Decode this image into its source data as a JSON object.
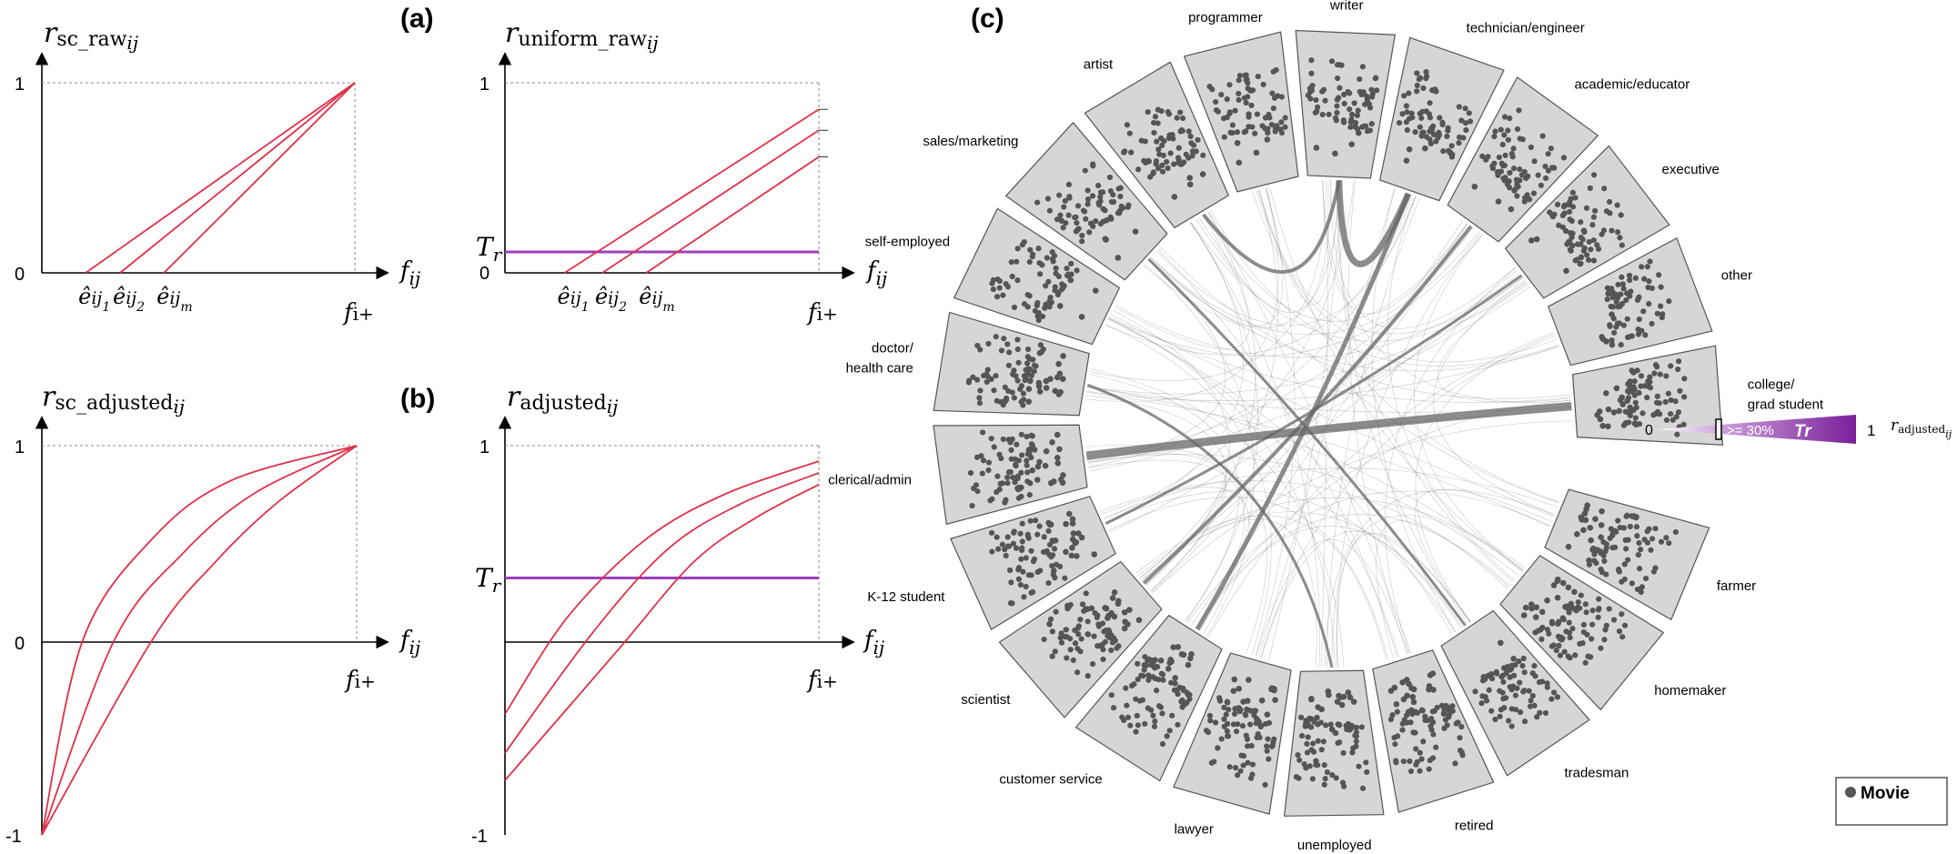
{
  "panels": {
    "a_label": "(a)",
    "b_label": "(b)",
    "c_label": "(c)"
  },
  "chart_data": [
    {
      "type": "line",
      "panel": "a-left",
      "ylabel_main": "r",
      "ylabel_sub": "sc_raw",
      "ylabel_idx": "ij",
      "xlabel_main": "f",
      "xlabel_idx": "ij",
      "xlim": [
        0,
        1
      ],
      "ylim": [
        0,
        1
      ],
      "yticks": [
        "1",
        "0"
      ],
      "x_end_label": "f",
      "x_end_sub": "i+",
      "x_markers": [
        {
          "label": "ê",
          "sub": "ij",
          "subsub": "1",
          "x": 0.14
        },
        {
          "label": "ê",
          "sub": "ij",
          "subsub": "2",
          "x": 0.25
        },
        {
          "label": "ê",
          "sub": "ij",
          "subsub": "m",
          "x": 0.39
        }
      ],
      "series": [
        {
          "x": [
            0.14,
            1.0
          ],
          "y": [
            0,
            1
          ]
        },
        {
          "x": [
            0.25,
            1.0
          ],
          "y": [
            0,
            1
          ]
        },
        {
          "x": [
            0.39,
            1.0
          ],
          "y": [
            0,
            1
          ]
        }
      ]
    },
    {
      "type": "line",
      "panel": "a-right",
      "ylabel_main": "r",
      "ylabel_sub": "uniform_raw",
      "ylabel_idx": "ij",
      "xlabel_main": "f",
      "xlabel_idx": "ij",
      "xlim": [
        0,
        1
      ],
      "ylim": [
        0,
        1
      ],
      "yticks": [
        "1",
        "0"
      ],
      "threshold_label": "T",
      "threshold_sub": "r",
      "threshold": 0.11,
      "x_end_label": "f",
      "x_end_sub": "i+",
      "x_markers": [
        {
          "label": "ê",
          "sub": "ij",
          "subsub": "1",
          "x": 0.19
        },
        {
          "label": "ê",
          "sub": "ij",
          "subsub": "2",
          "x": 0.31
        },
        {
          "label": "ê",
          "sub": "ij",
          "subsub": "m",
          "x": 0.45
        }
      ],
      "series": [
        {
          "x": [
            0.19,
            1.0
          ],
          "y": [
            0,
            0.86
          ]
        },
        {
          "x": [
            0.31,
            1.0
          ],
          "y": [
            0,
            0.75
          ]
        },
        {
          "x": [
            0.45,
            1.0
          ],
          "y": [
            0,
            0.61
          ]
        }
      ]
    },
    {
      "type": "line",
      "panel": "b-left",
      "ylabel_main": "r",
      "ylabel_sub": "sc_adjusted",
      "ylabel_idx": "ij",
      "xlabel_main": "f",
      "xlabel_idx": "ij",
      "xlim": [
        0,
        1
      ],
      "ylim": [
        -1,
        1
      ],
      "yticks": [
        "1",
        "0",
        "-1"
      ],
      "x_end_label": "f",
      "x_end_sub": "i+",
      "series": [
        {
          "x": [
            0,
            0.13,
            0.35,
            0.6,
            1.0
          ],
          "y": [
            -1,
            0,
            0.52,
            0.82,
            1
          ]
        },
        {
          "x": [
            0,
            0.23,
            0.45,
            0.68,
            1.0
          ],
          "y": [
            -1,
            0,
            0.45,
            0.76,
            1
          ]
        },
        {
          "x": [
            0,
            0.35,
            0.55,
            0.75,
            1.0
          ],
          "y": [
            -1,
            0,
            0.4,
            0.71,
            1
          ]
        }
      ]
    },
    {
      "type": "line",
      "panel": "b-right",
      "ylabel_main": "r",
      "ylabel_sub": "adjusted",
      "ylabel_idx": "ij",
      "xlabel_main": "f",
      "xlabel_idx": "ij",
      "xlim": [
        0,
        1
      ],
      "ylim": [
        -1,
        1
      ],
      "yticks": [
        "1",
        "-1"
      ],
      "threshold_label": "T",
      "threshold_sub": "r",
      "threshold": 0.32,
      "x_end_label": "f",
      "x_end_sub": "i+",
      "series": [
        {
          "x": [
            0,
            0.2,
            0.45,
            0.7,
            1.0
          ],
          "y": [
            -0.38,
            0.12,
            0.52,
            0.75,
            0.92
          ]
        },
        {
          "x": [
            0,
            0.28,
            0.52,
            0.75,
            1.0
          ],
          "y": [
            -0.58,
            0.04,
            0.47,
            0.7,
            0.86
          ]
        },
        {
          "x": [
            0,
            0.36,
            0.6,
            0.8,
            1.0
          ],
          "y": [
            -0.72,
            -0.05,
            0.4,
            0.63,
            0.8
          ]
        }
      ]
    },
    {
      "type": "radial",
      "panel": "c",
      "categories": [
        "writer",
        "technician/engineer",
        "academic/educator",
        "executive",
        "other",
        "college/grad student",
        "farmer",
        "homemaker",
        "tradesman",
        "retired",
        "unemployed",
        "lawyer",
        "customer service",
        "scientist",
        "K-12 student",
        "clerical/admin",
        "doctor/health care",
        "self-employed",
        "sales/marketing",
        "artist",
        "programmer"
      ],
      "scale_start": "0",
      "scale_end": "1",
      "scale_mark": ">= 30%",
      "scale_threshold": "Tr",
      "scale_label_main": "r",
      "scale_label_sub": "adjusted",
      "scale_label_idx": "ij",
      "legend": [
        {
          "name": "Movie",
          "color": "#555555"
        }
      ]
    }
  ]
}
